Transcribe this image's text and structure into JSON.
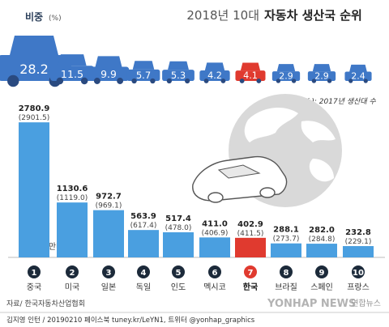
{
  "chart_data": {
    "type": "bar",
    "title_light": "2018년 10대",
    "title_bold": "자동차 생산국 순위",
    "share_label": "비중",
    "share_unit": "(%)",
    "production_label": "생산",
    "production_unit": "(만대)",
    "note": "( ): 2017년 생산대 수",
    "categories": [
      "중국",
      "미국",
      "일본",
      "독일",
      "인도",
      "멕시코",
      "한국",
      "브라질",
      "스페인",
      "프랑스"
    ],
    "ranks": [
      "1",
      "2",
      "3",
      "4",
      "5",
      "6",
      "7",
      "8",
      "9",
      "10"
    ],
    "series": [
      {
        "name": "생산",
        "values": [
          2780.9,
          1130.6,
          972.7,
          563.9,
          517.4,
          411.0,
          402.9,
          288.1,
          282.0,
          232.8
        ]
      },
      {
        "values": [
          2901.5,
          1119.0,
          969.1,
          617.4,
          478.0,
          406.9,
          411.5,
          273.7,
          284.8,
          229.1
        ]
      }
    ],
    "value_labels": [
      "2780.9",
      "1130.6",
      "972.7",
      "563.9",
      "517.4",
      "411.0",
      "402.9",
      "288.1",
      "282.0",
      "232.8"
    ],
    "prev_labels": [
      "(2901.5)",
      "(1119.0)",
      "(969.1)",
      "(617.4)",
      "(478.0)",
      "(406.9)",
      "(411.5)",
      "(273.7)",
      "(284.8)",
      "(229.1)"
    ],
    "shares": [
      28.2,
      11.5,
      9.9,
      5.7,
      5.3,
      4.2,
      4.1,
      2.9,
      2.9,
      2.4
    ],
    "share_labels": [
      "28.2",
      "11.5",
      "9.9",
      "5.7",
      "5.3",
      "4.2",
      "4.1",
      "2.9",
      "2.9",
      "2.4"
    ],
    "highlight_category": "한국",
    "ylim": [
      0,
      3000
    ],
    "colors": {
      "bar": "#4a9fe0",
      "highlight": "#e03a2f",
      "car": "#3f78c7",
      "car_highlight": "#e03a2f",
      "rank": "#1c2a3a"
    }
  },
  "footer": {
    "source": "자료/ 한국자동차산업협회",
    "credit": "김지영 인턴 / 20190210 페이스북 tuney.kr/LeYN1, 트위터 @yonhap_graphics",
    "watermark": "YONHAP NEWS",
    "watermark_brand": "연합뉴스"
  }
}
